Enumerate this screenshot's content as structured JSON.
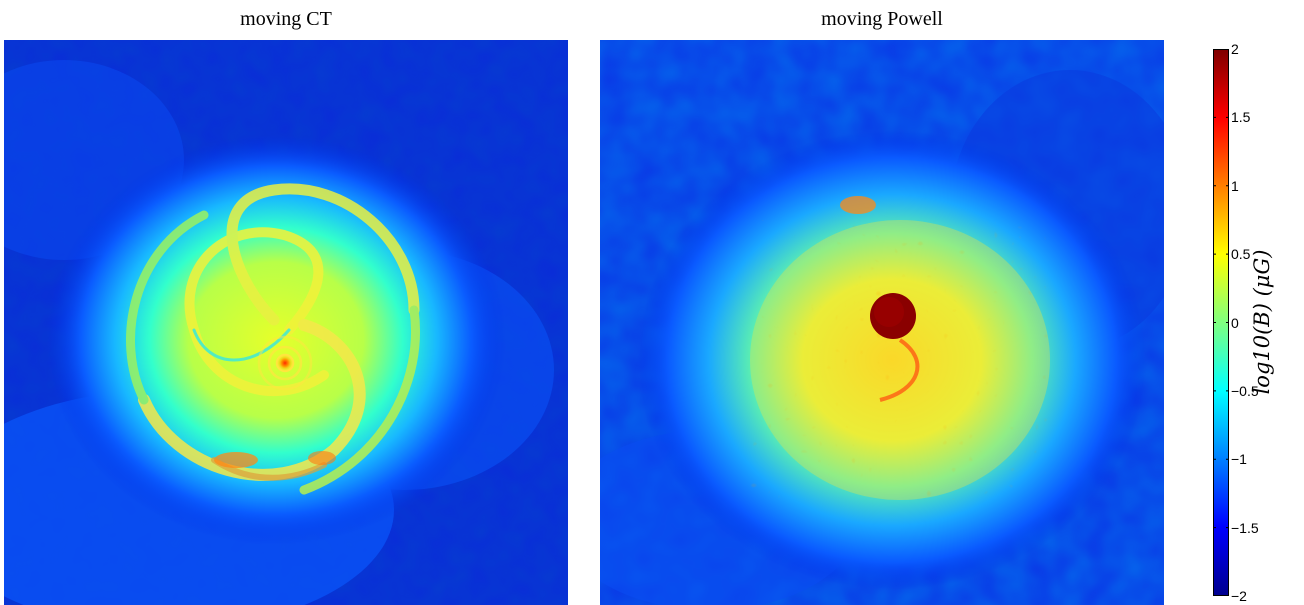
{
  "panels": {
    "left": {
      "title": "moving CT"
    },
    "right": {
      "title": "moving Powell"
    }
  },
  "colorbar": {
    "label": "log10(B) (μG)",
    "ticks": [
      "2",
      "1.5",
      "1",
      "0.5",
      "0",
      "−0.5",
      "−1",
      "−1.5",
      "−2"
    ],
    "range": [
      -2,
      2
    ],
    "colormap": "jet",
    "colors": {
      "min": "#00008f",
      "blue": "#0000ff",
      "cyan": "#00ffff",
      "yellow": "#ffff00",
      "red": "#ff0000",
      "max": "#800000"
    }
  }
}
